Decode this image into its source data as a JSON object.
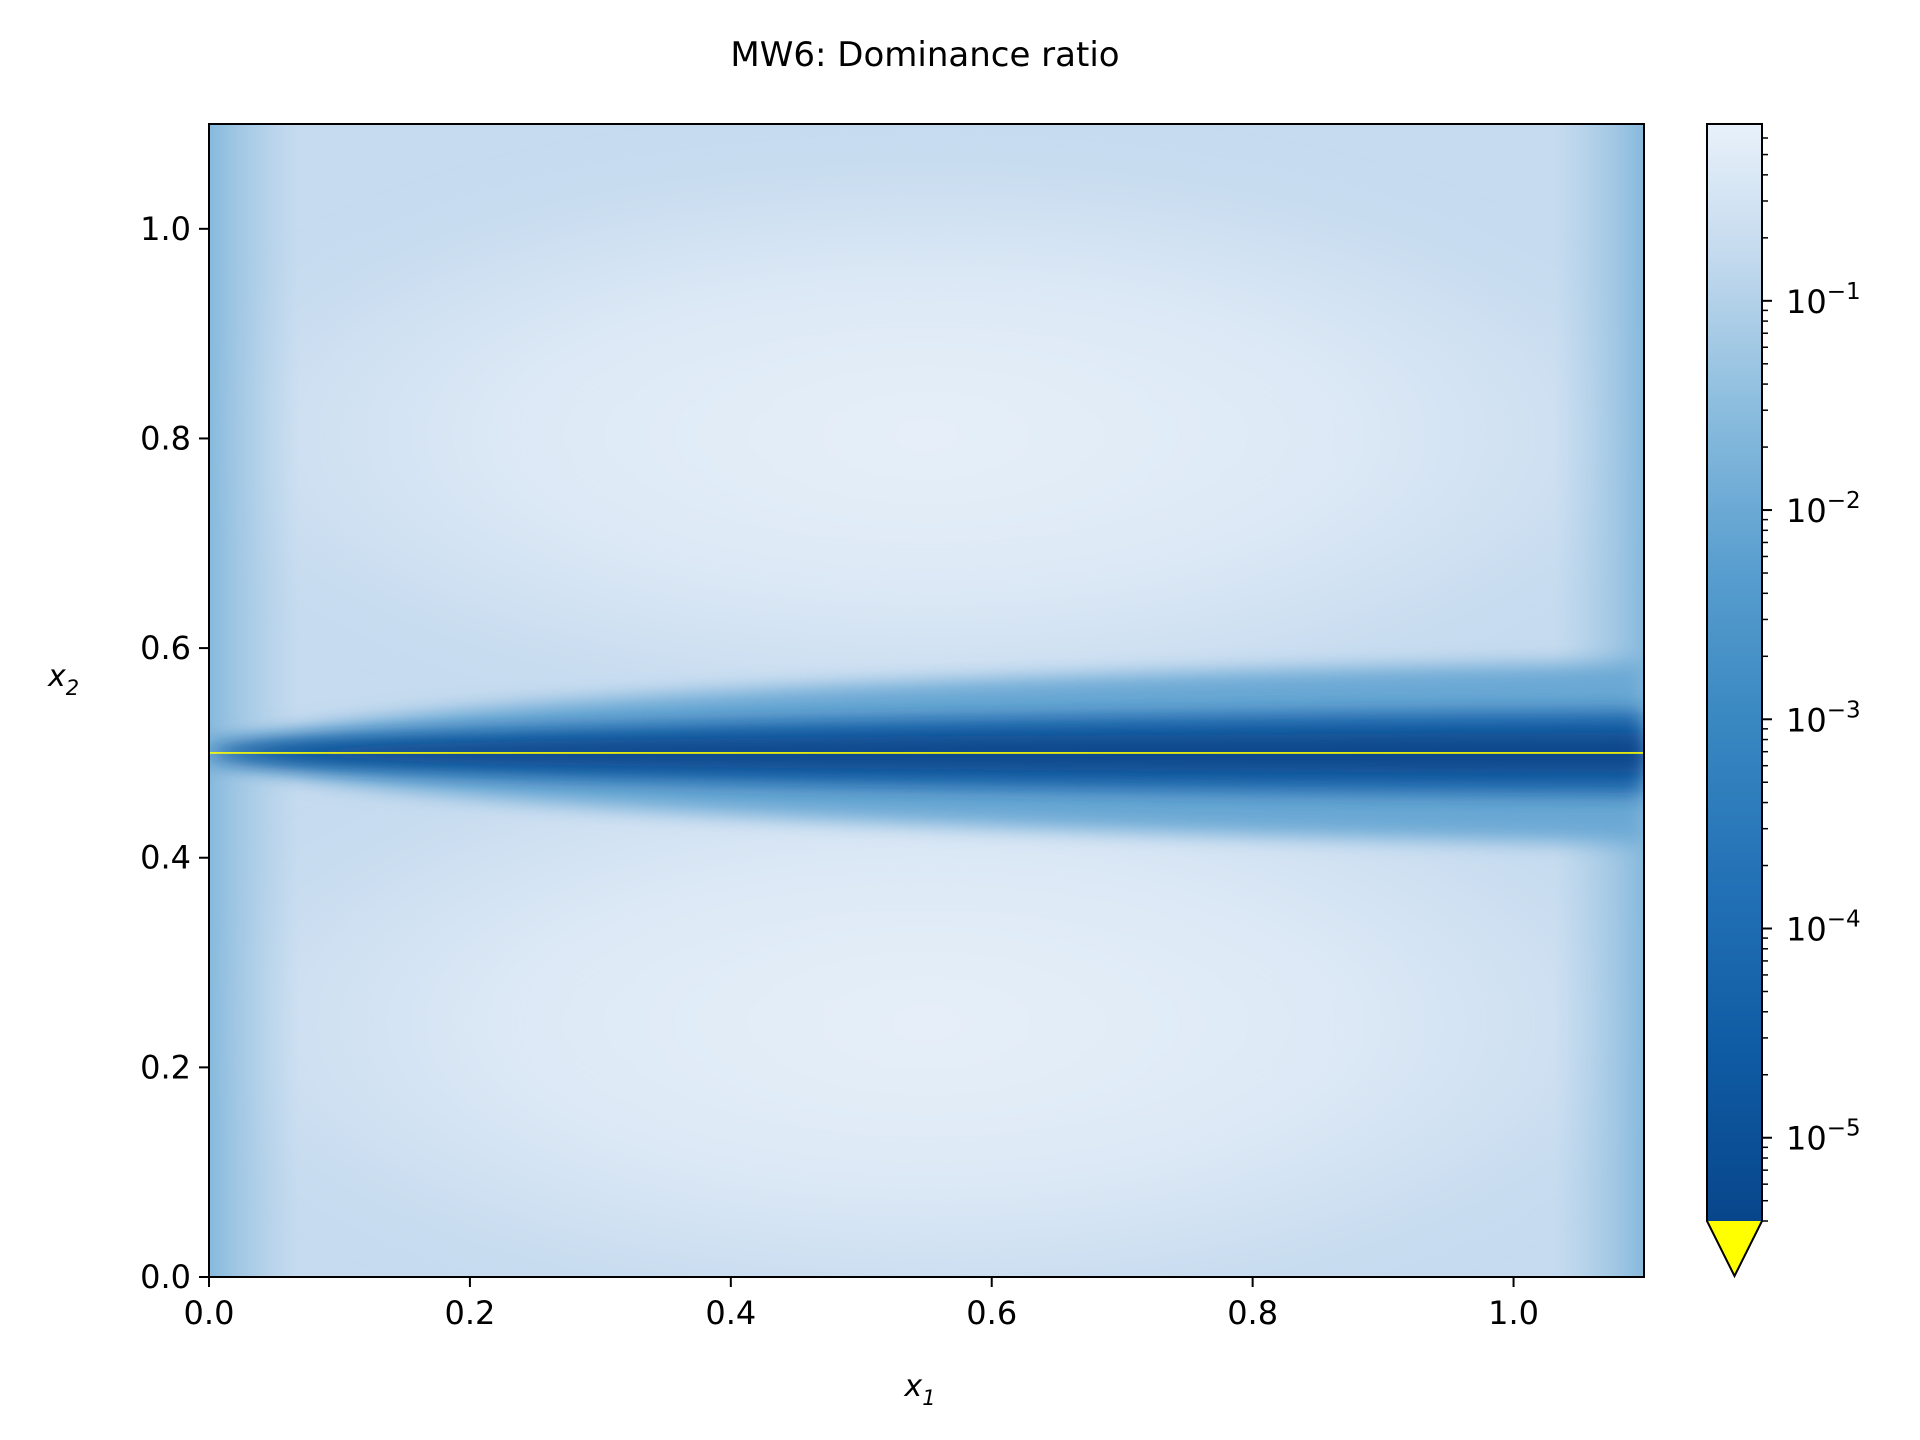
{
  "chart_data": {
    "type": "heatmap",
    "title": "MW6: Dominance ratio",
    "xlabel": {
      "base": "x",
      "sub": "1"
    },
    "ylabel": {
      "base": "x",
      "sub": "2"
    },
    "xlim": [
      0.0,
      1.1
    ],
    "ylim": [
      0.0,
      1.1
    ],
    "x_ticks": [
      {
        "value": 0.0,
        "label": "0.0"
      },
      {
        "value": 0.2,
        "label": "0.2"
      },
      {
        "value": 0.4,
        "label": "0.4"
      },
      {
        "value": 0.6,
        "label": "0.6"
      },
      {
        "value": 0.8,
        "label": "0.8"
      },
      {
        "value": 1.0,
        "label": "1.0"
      }
    ],
    "y_ticks": [
      {
        "value": 0.0,
        "label": "0.0"
      },
      {
        "value": 0.2,
        "label": "0.2"
      },
      {
        "value": 0.4,
        "label": "0.4"
      },
      {
        "value": 0.6,
        "label": "0.6"
      },
      {
        "value": 0.8,
        "label": "0.8"
      },
      {
        "value": 1.0,
        "label": "1.0"
      }
    ],
    "colorbar": {
      "scale": "log",
      "colormap": "Blues_r",
      "range": [
        4e-06,
        0.7
      ],
      "under_color": "#ffff00",
      "extend": "min",
      "ticks": [
        {
          "value": 1e-05,
          "base": "10",
          "exp": "−5"
        },
        {
          "value": 0.0001,
          "base": "10",
          "exp": "−4"
        },
        {
          "value": 0.001,
          "base": "10",
          "exp": "−3"
        },
        {
          "value": 0.01,
          "base": "10",
          "exp": "−2"
        },
        {
          "value": 0.1,
          "base": "10",
          "exp": "−1"
        }
      ]
    },
    "overlay_line": {
      "y": 0.5,
      "color": "#ffff00"
    },
    "grid": false,
    "colors": {
      "darkest": "#08468b",
      "mid": "#4a98c9",
      "light": "#c6dbef",
      "lightest": "#e4eef8"
    }
  }
}
